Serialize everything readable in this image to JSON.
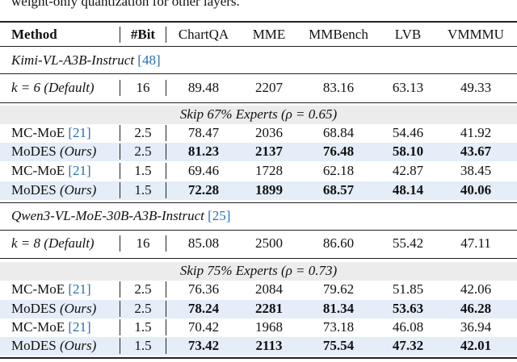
{
  "caption_fragment": "weight-only quantization for other layers.",
  "table": {
    "columns": [
      "Method",
      "#Bit",
      "ChartQA",
      "MME",
      "MMBench",
      "LVB",
      "VMMMU"
    ],
    "sections": [
      {
        "model": "Kimi-VL-A3B-Instruct",
        "ref": "[48]",
        "baseline": {
          "k": "k = 6",
          "note": "(Default)",
          "bit": "16",
          "values": [
            "89.48",
            "2207",
            "83.16",
            "63.13",
            "49.33"
          ]
        },
        "skip_label": "Skip 67% Experts (ρ = 0.65)",
        "rows": [
          {
            "method": "MC-MoE",
            "ref": "[21]",
            "bit": "2.5",
            "values": [
              "78.47",
              "2036",
              "68.84",
              "54.46",
              "41.92"
            ],
            "highlight": false
          },
          {
            "method": "MoDES",
            "ref": "(Ours)",
            "bit": "2.5",
            "values": [
              "81.23",
              "2137",
              "76.48",
              "58.10",
              "43.67"
            ],
            "highlight": true
          },
          {
            "method": "MC-MoE",
            "ref": "[21]",
            "bit": "1.5",
            "values": [
              "69.46",
              "1728",
              "62.18",
              "42.87",
              "38.45"
            ],
            "highlight": false
          },
          {
            "method": "MoDES",
            "ref": "(Ours)",
            "bit": "1.5",
            "values": [
              "72.28",
              "1899",
              "68.57",
              "48.14",
              "40.06"
            ],
            "highlight": true
          }
        ]
      },
      {
        "model": "Qwen3-VL-MoE-30B-A3B-Instruct",
        "ref": "[25]",
        "baseline": {
          "k": "k = 8",
          "note": "(Default)",
          "bit": "16",
          "values": [
            "85.08",
            "2500",
            "86.60",
            "55.42",
            "47.11"
          ]
        },
        "skip_label": "Skip 75% Experts (ρ = 0.73)",
        "rows": [
          {
            "method": "MC-MoE",
            "ref": "[21]",
            "bit": "2.5",
            "values": [
              "76.36",
              "2084",
              "79.62",
              "51.85",
              "42.06"
            ],
            "highlight": false
          },
          {
            "method": "MoDES",
            "ref": "(Ours)",
            "bit": "2.5",
            "values": [
              "78.24",
              "2281",
              "81.34",
              "53.63",
              "46.28"
            ],
            "highlight": true
          },
          {
            "method": "MC-MoE",
            "ref": "[21]",
            "bit": "1.5",
            "values": [
              "70.42",
              "1968",
              "73.18",
              "46.08",
              "36.94"
            ],
            "highlight": false
          },
          {
            "method": "MoDES",
            "ref": "(Ours)",
            "bit": "1.5",
            "values": [
              "73.42",
              "2113",
              "75.54",
              "47.32",
              "42.01"
            ],
            "highlight": true
          }
        ]
      }
    ]
  }
}
